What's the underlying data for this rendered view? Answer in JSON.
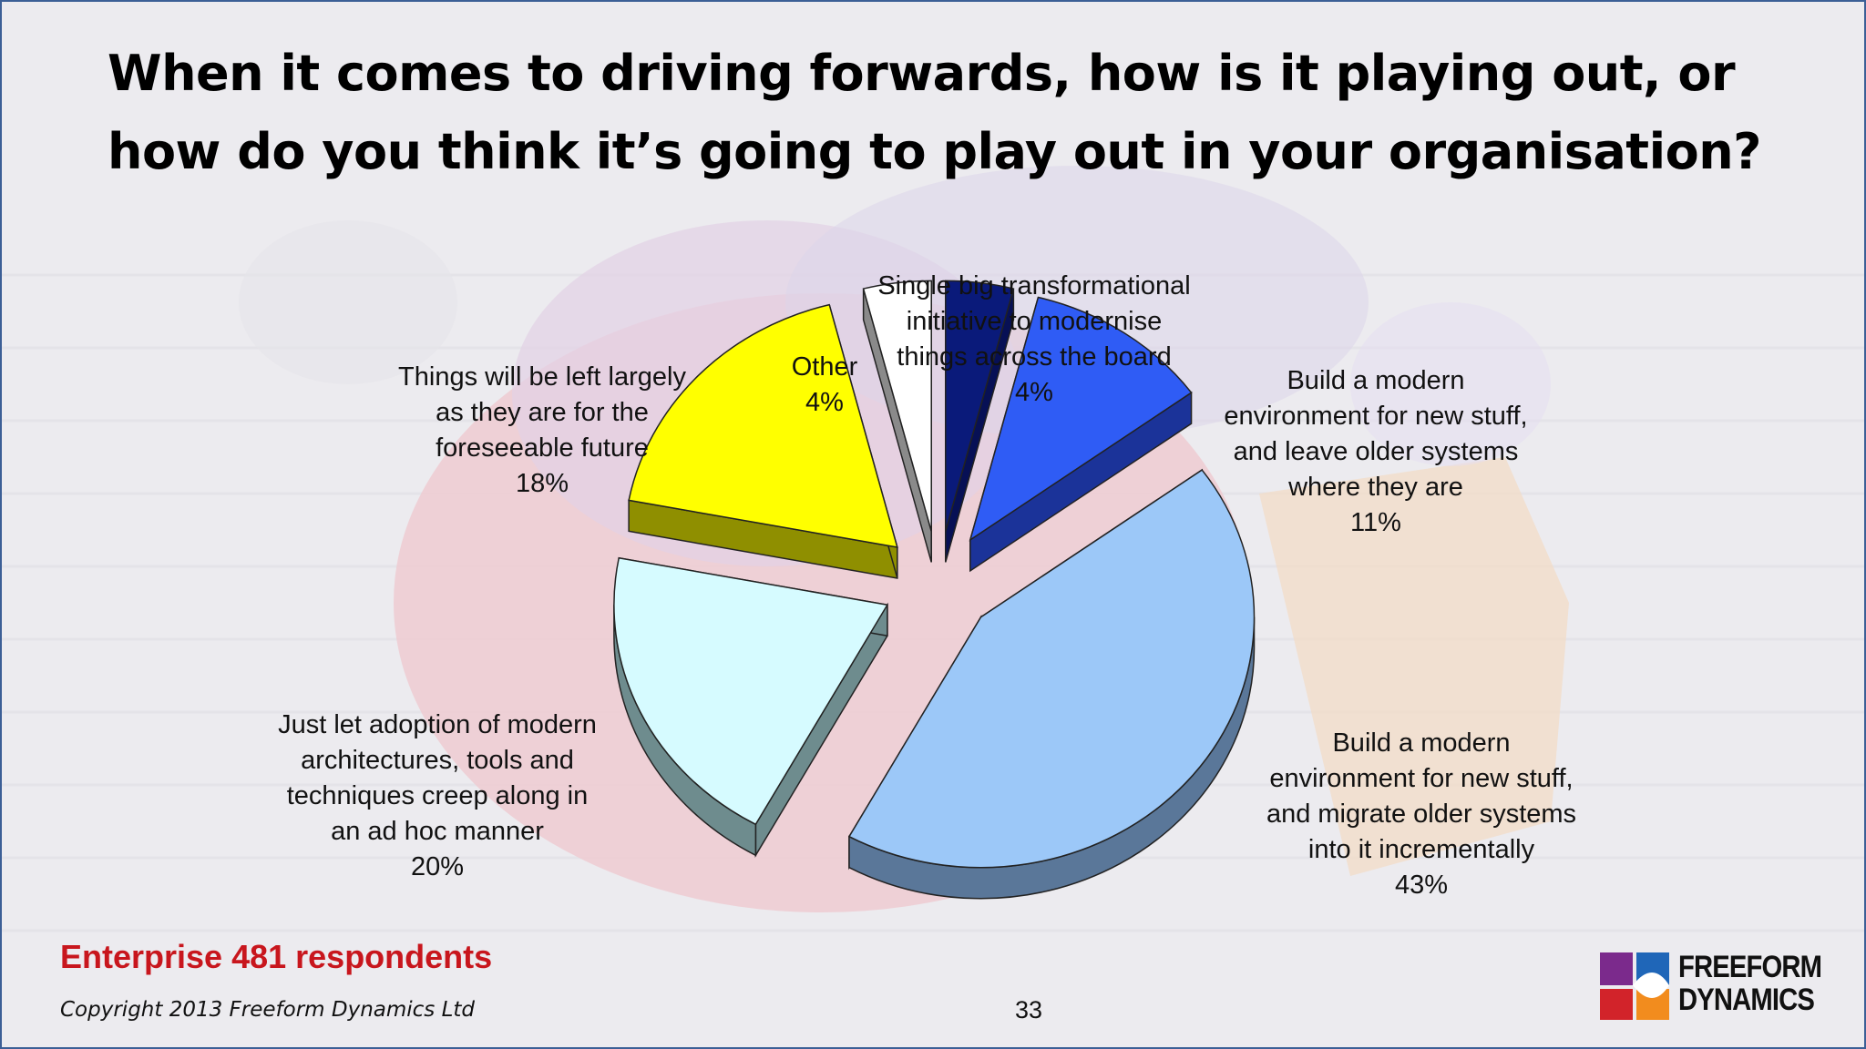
{
  "slide": {
    "title_line1": "When it comes to driving forwards, how is it playing out, or",
    "title_line2": "how do you think it’s going to play out in your organisation?",
    "respondents": "Enterprise 481 respondents",
    "copyright": "Copyright 2013 Freeform Dynamics Ltd",
    "page_number": "33",
    "logo_line1": "FREEFORM",
    "logo_line2": "DYNAMICS"
  },
  "chart_data": {
    "type": "pie",
    "title": "",
    "slices": [
      {
        "label": "Single big transformational\ninitiative to modernise\nthings across the board",
        "pct_label": "4%",
        "value": 4,
        "color": "#0a1a7a",
        "side": "#071055"
      },
      {
        "label": "Build a modern\nenvironment for new stuff,\nand leave older systems\nwhere they are",
        "pct_label": "11%",
        "value": 11,
        "color": "#2f5cf5",
        "side": "#1b3399"
      },
      {
        "label": "Build a modern\nenvironment for new stuff,\nand migrate older systems\ninto it incrementally",
        "pct_label": "43%",
        "value": 43,
        "color": "#9cc8f8",
        "side": "#5a7799"
      },
      {
        "label": "Just let adoption of modern\narchitectures, tools and\ntechniques creep along in\nan ad hoc manner",
        "pct_label": "20%",
        "value": 20,
        "color": "#d6fbff",
        "side": "#6e8c8e"
      },
      {
        "label": "Things will be left largely\nas they are for the\nforeseeable future",
        "pct_label": "18%",
        "value": 18,
        "color": "#ffff00",
        "side": "#8f8f00"
      },
      {
        "label": "Other",
        "pct_label": "4%",
        "value": 4,
        "color": "#ffffff",
        "side": "#8a8a8a"
      }
    ],
    "legend": "none",
    "exploded": true
  }
}
